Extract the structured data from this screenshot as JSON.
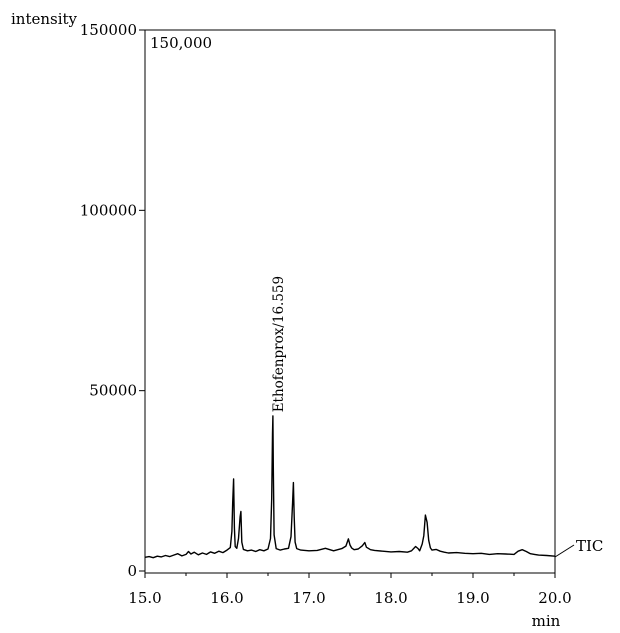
{
  "chart_data": {
    "type": "line",
    "y_axis_title": "intensity",
    "x_axis_title": "min",
    "scale_label": "150,000",
    "series_label": "TIC",
    "xlim": [
      15.0,
      20.0
    ],
    "ylim": [
      0,
      150000
    ],
    "x_ticks": [
      15.0,
      16.0,
      17.0,
      18.0,
      19.0,
      20.0
    ],
    "x_tick_labels": [
      "15.0",
      "16.0",
      "17.0",
      "18.0",
      "19.0",
      "20.0"
    ],
    "y_ticks": [
      0,
      50000,
      100000,
      150000
    ],
    "y_tick_labels": [
      "0",
      "50000",
      "100000",
      "150000"
    ],
    "grid": false,
    "peak_annotation": {
      "text": "Ethofenprox/16.559",
      "x": 16.559,
      "y": 44000
    },
    "series": [
      {
        "x": [
          15.0,
          15.05,
          15.1,
          15.15,
          15.2,
          15.25,
          15.3,
          15.35,
          15.4,
          15.45,
          15.5,
          15.53,
          15.56,
          15.6,
          15.65,
          15.7,
          15.75,
          15.8,
          15.85,
          15.9,
          15.95,
          16.0,
          16.04,
          16.06,
          16.07,
          16.08,
          16.09,
          16.1,
          16.12,
          16.14,
          16.16,
          16.17,
          16.18,
          16.2,
          16.25,
          16.3,
          16.35,
          16.4,
          16.45,
          16.5,
          16.53,
          16.545,
          16.555,
          16.56,
          16.565,
          16.575,
          16.6,
          16.65,
          16.7,
          16.75,
          16.78,
          16.8,
          16.81,
          16.82,
          16.83,
          16.85,
          16.9,
          17.0,
          17.1,
          17.2,
          17.3,
          17.4,
          17.45,
          17.48,
          17.5,
          17.52,
          17.55,
          17.6,
          17.65,
          17.68,
          17.7,
          17.75,
          17.8,
          17.9,
          18.0,
          18.1,
          18.2,
          18.25,
          18.3,
          18.33,
          18.35,
          18.38,
          18.4,
          18.42,
          18.44,
          18.46,
          18.48,
          18.5,
          18.55,
          18.6,
          18.65,
          18.7,
          18.8,
          18.9,
          19.0,
          19.1,
          19.2,
          19.3,
          19.4,
          19.5,
          19.55,
          19.6,
          19.65,
          19.7,
          19.75,
          19.8,
          19.9,
          20.0
        ],
        "y": [
          3800,
          4000,
          3700,
          4100,
          3900,
          4300,
          4000,
          4400,
          4800,
          4200,
          4600,
          5400,
          4700,
          5200,
          4500,
          5000,
          4600,
          5300,
          4900,
          5500,
          5100,
          5800,
          6500,
          11000,
          19000,
          25500,
          12000,
          6800,
          6300,
          9000,
          15000,
          16500,
          8000,
          6000,
          5600,
          5800,
          5400,
          5900,
          5600,
          6100,
          9000,
          20000,
          38000,
          43000,
          29000,
          10000,
          6200,
          5800,
          6100,
          6300,
          9500,
          19000,
          24500,
          15000,
          8000,
          6200,
          5800,
          5600,
          5700,
          6300,
          5600,
          6200,
          6900,
          8900,
          7200,
          6400,
          5900,
          6100,
          7000,
          7900,
          6600,
          5900,
          5700,
          5500,
          5300,
          5400,
          5200,
          5600,
          6800,
          6200,
          5600,
          7500,
          9800,
          15500,
          13500,
          8500,
          6400,
          5800,
          6000,
          5500,
          5200,
          5000,
          5100,
          4900,
          4800,
          4900,
          4600,
          4800,
          4700,
          4600,
          5500,
          5900,
          5400,
          4800,
          4600,
          4400,
          4300,
          4100
        ]
      }
    ]
  }
}
